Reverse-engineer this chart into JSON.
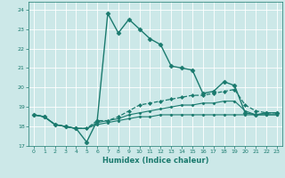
{
  "xlabel": "Humidex (Indice chaleur)",
  "bg_color": "#cce8e8",
  "line_color": "#1a7a6e",
  "grid_color": "#ffffff",
  "xlim": [
    -0.5,
    23.5
  ],
  "ylim": [
    17.0,
    24.4
  ],
  "xticks": [
    0,
    1,
    2,
    3,
    4,
    5,
    6,
    7,
    8,
    9,
    10,
    11,
    12,
    13,
    14,
    15,
    16,
    17,
    18,
    19,
    20,
    21,
    22,
    23
  ],
  "yticks": [
    17,
    18,
    19,
    20,
    21,
    22,
    23,
    24
  ],
  "series": [
    {
      "x": [
        0,
        1,
        2,
        3,
        4,
        5,
        6,
        7,
        8,
        9,
        10,
        11,
        12,
        13,
        14,
        15,
        16,
        17,
        18,
        19,
        20,
        21,
        22,
        23
      ],
      "y": [
        18.6,
        18.5,
        18.1,
        18.0,
        17.9,
        17.2,
        18.3,
        23.8,
        22.8,
        23.5,
        23.0,
        22.5,
        22.2,
        21.1,
        21.0,
        20.9,
        19.7,
        19.8,
        20.3,
        20.1,
        18.7,
        18.6,
        18.7,
        18.7
      ],
      "style": "-",
      "marker": "D",
      "markersize": 2.5,
      "linewidth": 1.0,
      "dashed": false
    },
    {
      "x": [
        0,
        1,
        2,
        3,
        4,
        5,
        6,
        7,
        8,
        9,
        10,
        11,
        12,
        13,
        14,
        15,
        16,
        17,
        18,
        19,
        20,
        21,
        22,
        23
      ],
      "y": [
        18.6,
        18.5,
        18.1,
        18.0,
        17.9,
        17.9,
        18.3,
        18.3,
        18.5,
        18.8,
        19.1,
        19.2,
        19.3,
        19.4,
        19.5,
        19.6,
        19.6,
        19.7,
        19.8,
        19.9,
        19.1,
        18.8,
        18.7,
        18.7
      ],
      "style": "--",
      "marker": "D",
      "markersize": 2.0,
      "linewidth": 0.9,
      "dashed": true
    },
    {
      "x": [
        0,
        1,
        2,
        3,
        4,
        5,
        6,
        7,
        8,
        9,
        10,
        11,
        12,
        13,
        14,
        15,
        16,
        17,
        18,
        19,
        20,
        21,
        22,
        23
      ],
      "y": [
        18.6,
        18.5,
        18.1,
        18.0,
        17.9,
        17.9,
        18.2,
        18.3,
        18.4,
        18.6,
        18.7,
        18.8,
        18.9,
        19.0,
        19.1,
        19.1,
        19.2,
        19.2,
        19.3,
        19.3,
        18.8,
        18.6,
        18.6,
        18.6
      ],
      "style": "-",
      "marker": "D",
      "markersize": 1.5,
      "linewidth": 0.8,
      "dashed": false
    },
    {
      "x": [
        0,
        1,
        2,
        3,
        4,
        5,
        6,
        7,
        8,
        9,
        10,
        11,
        12,
        13,
        14,
        15,
        16,
        17,
        18,
        19,
        20,
        21,
        22,
        23
      ],
      "y": [
        18.6,
        18.5,
        18.1,
        18.0,
        17.9,
        17.9,
        18.1,
        18.2,
        18.3,
        18.4,
        18.5,
        18.5,
        18.6,
        18.6,
        18.6,
        18.6,
        18.6,
        18.6,
        18.6,
        18.6,
        18.6,
        18.6,
        18.6,
        18.6
      ],
      "style": "-",
      "marker": "D",
      "markersize": 1.5,
      "linewidth": 0.8,
      "dashed": false
    }
  ]
}
